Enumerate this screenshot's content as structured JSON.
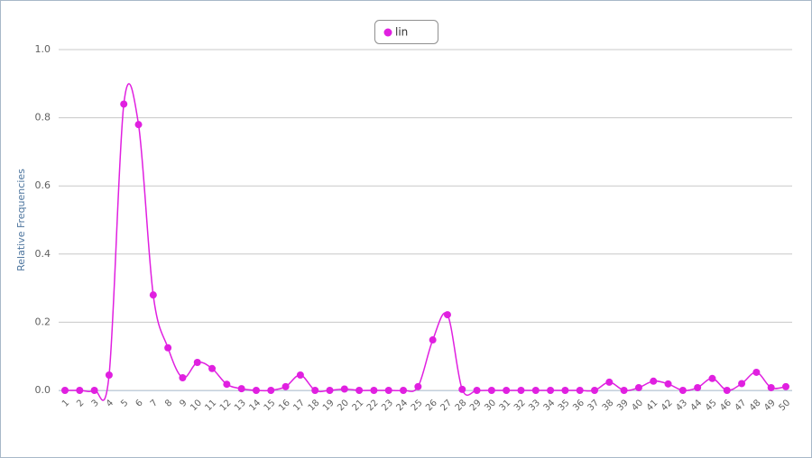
{
  "chart_data": {
    "type": "line",
    "y_axis_label": "Relative Frequencies",
    "categories": [
      "1",
      "2",
      "3",
      "4",
      "5",
      "6",
      "7",
      "8",
      "9",
      "10",
      "11",
      "12",
      "13",
      "14",
      "15",
      "16",
      "17",
      "18",
      "19",
      "20",
      "21",
      "22",
      "23",
      "24",
      "25",
      "26",
      "27",
      "28",
      "29",
      "30",
      "31",
      "32",
      "33",
      "34",
      "35",
      "36",
      "37",
      "38",
      "39",
      "40",
      "41",
      "42",
      "43",
      "44",
      "45",
      "46",
      "47",
      "48",
      "49",
      "50"
    ],
    "series": [
      {
        "name": "lin",
        "color": "#e020e0",
        "values": [
          0,
          0,
          0,
          0.045,
          0.84,
          0.78,
          0.28,
          0.125,
          0.037,
          0.082,
          0.064,
          0.018,
          0.005,
          0,
          0,
          0.011,
          0.045,
          0,
          0,
          0.004,
          0,
          0,
          0,
          0,
          0.011,
          0.148,
          0.222,
          0.003,
          0,
          0,
          0,
          0,
          0,
          0,
          0,
          0,
          0,
          0.024,
          0,
          0.008,
          0.027,
          0.019,
          0,
          0.008,
          0.035,
          0,
          0.02,
          0.053,
          0.008,
          0.011
        ]
      }
    ],
    "ylim": [
      0,
      1
    ],
    "yticks": [
      {
        "value": 0,
        "label": "0.0"
      },
      0.2,
      0.4,
      0.6,
      0.8,
      {
        "value": 1,
        "label": "1.0"
      }
    ],
    "grid": true,
    "legend": "top"
  }
}
